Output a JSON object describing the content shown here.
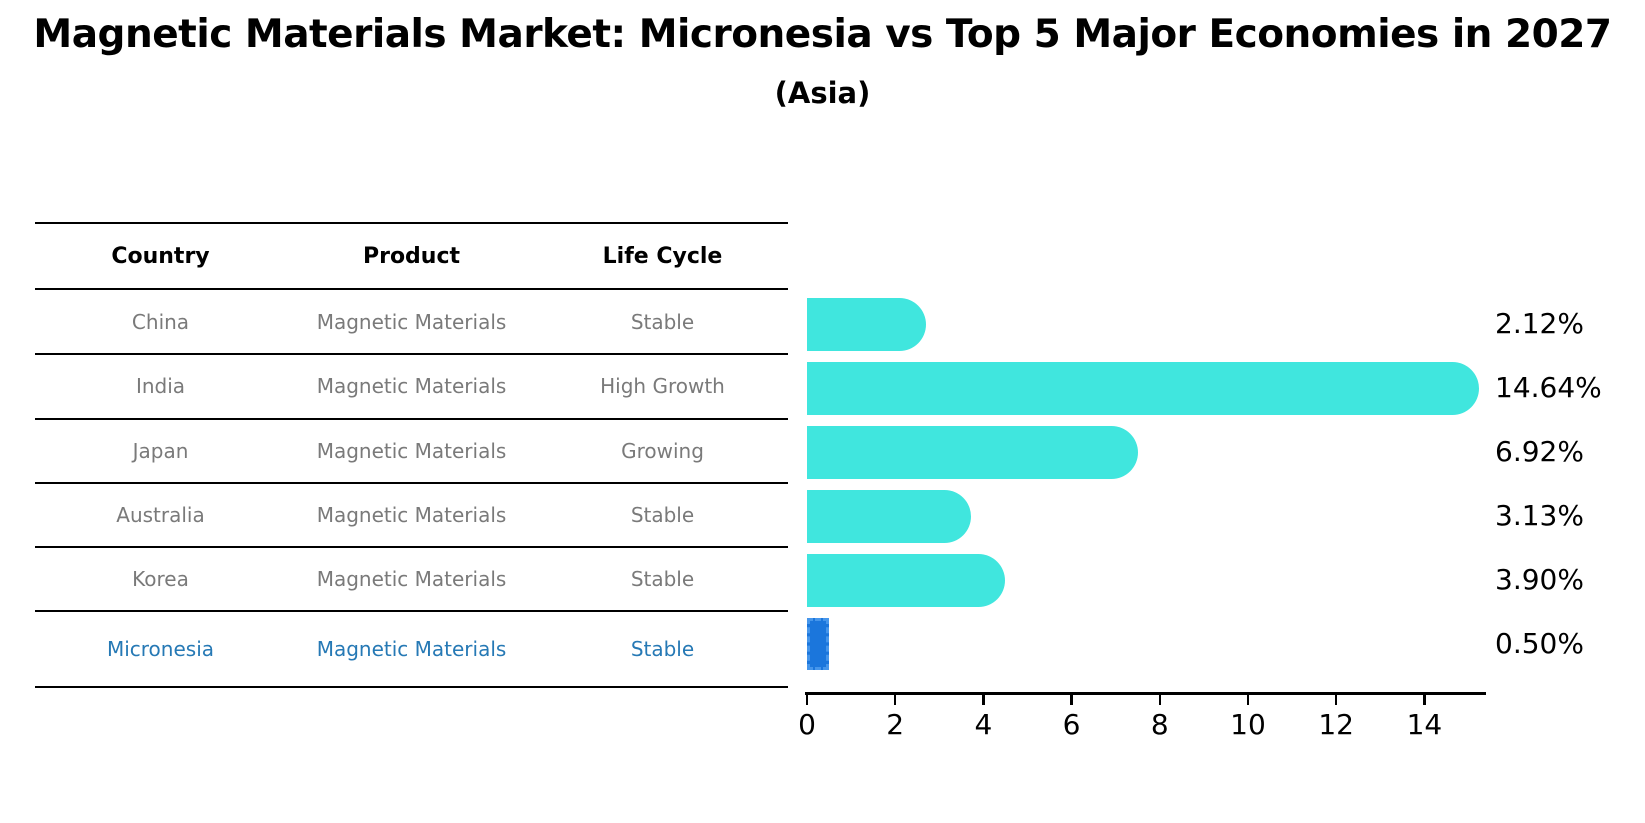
{
  "title": "Magnetic Materials Market: Micronesia vs Top 5 Major Economies in 2027",
  "subtitle": "(Asia)",
  "table": {
    "columns": [
      "Country",
      "Product",
      "Life Cycle"
    ],
    "rows": [
      {
        "country": "China",
        "product": "Magnetic Materials",
        "life_cycle": "Stable",
        "highlight": false
      },
      {
        "country": "India",
        "product": "Magnetic Materials",
        "life_cycle": "High Growth",
        "highlight": false
      },
      {
        "country": "Japan",
        "product": "Magnetic Materials",
        "life_cycle": "Growing",
        "highlight": false
      },
      {
        "country": "Australia",
        "product": "Magnetic Materials",
        "life_cycle": "Stable",
        "highlight": false
      },
      {
        "country": "Korea",
        "product": "Magnetic Materials",
        "life_cycle": "Stable",
        "highlight": false
      },
      {
        "country": "Micronesia",
        "product": "Magnetic Materials",
        "life_cycle": "Stable",
        "highlight": true
      }
    ]
  },
  "chart_data": {
    "type": "bar",
    "orientation": "horizontal",
    "title": "Magnetic Materials Market: Micronesia vs Top 5 Major Economies in 2027",
    "subtitle": "(Asia)",
    "categories": [
      "China",
      "India",
      "Japan",
      "Australia",
      "Korea",
      "Micronesia"
    ],
    "values": [
      2.12,
      14.64,
      6.92,
      3.13,
      3.9,
      0.5
    ],
    "value_labels": [
      "2.12%",
      "14.64%",
      "6.92%",
      "3.13%",
      "3.90%",
      "0.50%"
    ],
    "x_ticks": [
      0,
      2,
      4,
      6,
      8,
      10,
      12,
      14
    ],
    "xlim": [
      0,
      15.4
    ],
    "grid": false,
    "legend": false,
    "highlight_index": 5,
    "bar_color": "#40e6de",
    "highlight_bar_color": "#1b76dc",
    "highlight_bar_dash_color": "#4696eb",
    "highlight_text_color": "#2679b5",
    "table_text_color": "#7a7a7a",
    "axis_color": "#000000"
  }
}
